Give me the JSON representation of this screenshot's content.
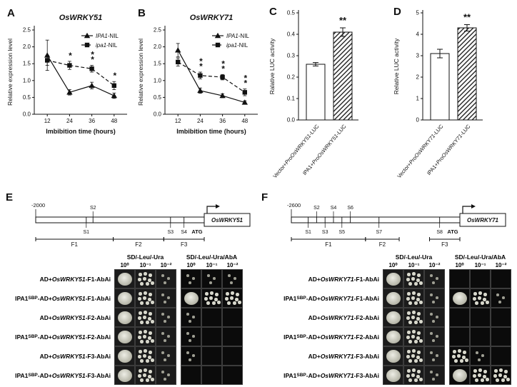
{
  "figure": {
    "panel_labels": {
      "A": "A",
      "B": "B",
      "C": "C",
      "D": "D",
      "E": "E",
      "F": "F"
    }
  },
  "chart_data": [
    {
      "id": "A",
      "type": "line",
      "title": "OsWRKY51",
      "xlabel": "Imbibition time (hours)",
      "ylabel": "Relative expression level",
      "x": [
        12,
        24,
        36,
        48
      ],
      "ylim": [
        0,
        2.5
      ],
      "yticks": [
        0,
        0.5,
        1,
        1.5,
        2,
        2.5
      ],
      "series": [
        {
          "name_it": "IPA1",
          "name_rest": "-NIL",
          "marker": "triangle",
          "dash": false,
          "values": [
            1.75,
            0.65,
            0.85,
            0.55
          ],
          "errors": [
            0.45,
            0.08,
            0.1,
            0.08
          ]
        },
        {
          "name_it": "ipa1",
          "name_rest": "-NIL",
          "marker": "square",
          "dash": true,
          "values": [
            1.6,
            1.45,
            1.35,
            0.85
          ],
          "errors": [
            0.15,
            0.12,
            0.1,
            0.12
          ]
        }
      ],
      "significance": [
        "",
        "*",
        "**",
        "*"
      ]
    },
    {
      "id": "B",
      "type": "line",
      "title": "OsWRKY71",
      "xlabel": "Imbibition time (hours)",
      "ylabel": "Relative expression level",
      "x": [
        12,
        24,
        36,
        48
      ],
      "ylim": [
        0,
        2.5
      ],
      "yticks": [
        0,
        0.5,
        1,
        1.5,
        2,
        2.5
      ],
      "series": [
        {
          "name_it": "IPA1",
          "name_rest": "-NIL",
          "marker": "triangle",
          "dash": false,
          "values": [
            1.9,
            0.7,
            0.55,
            0.35
          ],
          "errors": [
            0.2,
            0.08,
            0.06,
            0.05
          ]
        },
        {
          "name_it": "ipa1",
          "name_rest": "-NIL",
          "marker": "square",
          "dash": true,
          "values": [
            1.55,
            1.15,
            1.1,
            0.65
          ],
          "errors": [
            0.12,
            0.1,
            0.08,
            0.1
          ]
        }
      ],
      "significance": [
        "",
        "**",
        "**",
        "**"
      ]
    },
    {
      "id": "C",
      "type": "bar",
      "ylabel": "Ralative LUC activity",
      "ylim": [
        0,
        0.5
      ],
      "yticks": [
        0,
        0.1,
        0.2,
        0.3,
        0.4,
        0.5
      ],
      "bars": [
        {
          "label_parts": [
            {
              "t": "Vector+"
            },
            {
              "t": "ProOsWRKY51",
              "i": true
            },
            {
              "t": "-LUC"
            }
          ],
          "value": 0.26,
          "error": 0.008,
          "fill": "white"
        },
        {
          "label_parts": [
            {
              "t": "IPA1+"
            },
            {
              "t": "ProOsWRKY51",
              "i": true
            },
            {
              "t": "-LUC"
            }
          ],
          "value": 0.41,
          "error": 0.02,
          "fill": "hatch",
          "sig": "**"
        }
      ]
    },
    {
      "id": "D",
      "type": "bar",
      "ylabel": "Relative LUC activity",
      "ylim": [
        0,
        5
      ],
      "yticks": [
        0,
        1,
        2,
        3,
        4,
        5
      ],
      "bars": [
        {
          "label_parts": [
            {
              "t": "Vector+"
            },
            {
              "t": "ProOsWRKY71",
              "i": true
            },
            {
              "t": "-LUC"
            }
          ],
          "value": 3.1,
          "error": 0.2,
          "fill": "white"
        },
        {
          "label_parts": [
            {
              "t": "IPA1+"
            },
            {
              "t": "ProOsWRKY71",
              "i": true
            },
            {
              "t": "-LUC"
            }
          ],
          "value": 4.3,
          "error": 0.15,
          "fill": "hatch",
          "sig": "**"
        }
      ]
    }
  ],
  "diagrams": {
    "E": {
      "start_label": "-2000",
      "gene": "OsWRKY51",
      "atg": "ATG",
      "sites": [
        {
          "n": "S2",
          "p": 0.34,
          "above": true
        },
        {
          "n": "S1",
          "p": 0.3,
          "above": false
        },
        {
          "n": "S3",
          "p": 0.8,
          "above": false
        },
        {
          "n": "S4",
          "p": 0.88,
          "above": false
        }
      ],
      "fragments": [
        {
          "n": "F1",
          "a": 0,
          "b": 0.46
        },
        {
          "n": "F2",
          "a": 0.46,
          "b": 0.76
        },
        {
          "n": "F3",
          "a": 0.76,
          "b": 1
        }
      ]
    },
    "F": {
      "start_label": "-2600",
      "gene": "OsWRKY71",
      "atg": "ATG",
      "sites": [
        {
          "n": "S1",
          "p": 0.1,
          "above": false
        },
        {
          "n": "S2",
          "p": 0.15,
          "above": true
        },
        {
          "n": "S3",
          "p": 0.2,
          "above": false
        },
        {
          "n": "S4",
          "p": 0.25,
          "above": true
        },
        {
          "n": "S5",
          "p": 0.3,
          "above": false
        },
        {
          "n": "S6",
          "p": 0.35,
          "above": true
        },
        {
          "n": "S7",
          "p": 0.52,
          "above": false
        },
        {
          "n": "S8",
          "p": 0.88,
          "above": false
        }
      ],
      "fragments": [
        {
          "n": "F1",
          "a": 0,
          "b": 0.44
        },
        {
          "n": "F2",
          "a": 0.44,
          "b": 0.64
        },
        {
          "n": "F3",
          "a": 0.82,
          "b": 1
        }
      ]
    }
  },
  "assays": {
    "E": {
      "media": [
        "SD/-Leu/-Ura",
        "SD/-Leu/-Ura/AbA"
      ],
      "dilutions": [
        "10⁰",
        "10⁻¹",
        "10⁻²"
      ],
      "rows": [
        {
          "label_parts": [
            {
              "t": "AD+"
            },
            {
              "t": "OsWRKY51",
              "i": true
            },
            {
              "t": "-F1-AbAi"
            }
          ],
          "growth": [
            3,
            2,
            1,
            1,
            1,
            1
          ]
        },
        {
          "label_parts": [
            {
              "t": "IPA1"
            },
            {
              "t": "SBP",
              "sub": true
            },
            {
              "t": "-AD+"
            },
            {
              "t": "OsWRKY51",
              "i": true
            },
            {
              "t": "-F1-AbAi"
            }
          ],
          "growth": [
            3,
            2,
            1,
            3,
            2,
            2
          ]
        },
        {
          "label_parts": [
            {
              "t": "AD+"
            },
            {
              "t": "OsWRKY51",
              "i": true
            },
            {
              "t": "-F2-AbAi"
            }
          ],
          "growth": [
            3,
            2,
            1,
            1,
            0,
            0
          ]
        },
        {
          "label_parts": [
            {
              "t": "IPA1"
            },
            {
              "t": "SBP",
              "sub": true
            },
            {
              "t": "-AD+"
            },
            {
              "t": "OsWRKY51",
              "i": true
            },
            {
              "t": "-F2-AbAi"
            }
          ],
          "growth": [
            3,
            2,
            1,
            1,
            0,
            0
          ]
        },
        {
          "label_parts": [
            {
              "t": "AD+"
            },
            {
              "t": "OsWRKY51",
              "i": true
            },
            {
              "t": "-F3-AbAi"
            }
          ],
          "growth": [
            3,
            2,
            1,
            1,
            0,
            0
          ]
        },
        {
          "label_parts": [
            {
              "t": "IPA1"
            },
            {
              "t": "SBP",
              "sub": true
            },
            {
              "t": "-AD+"
            },
            {
              "t": "OsWRKY51",
              "i": true
            },
            {
              "t": "-F3-AbAi"
            }
          ],
          "growth": [
            3,
            2,
            1,
            0,
            0,
            0
          ]
        }
      ]
    },
    "F": {
      "media": [
        "SD/-Leu/-Ura",
        "SD/-Leu/-Ura/AbA"
      ],
      "dilutions": [
        "10⁰",
        "10⁻¹",
        "10⁻²"
      ],
      "rows": [
        {
          "label_parts": [
            {
              "t": "AD+"
            },
            {
              "t": "OsWRKY71",
              "i": true
            },
            {
              "t": "-F1-AbAi"
            }
          ],
          "growth": [
            3,
            2,
            1,
            0,
            0,
            0
          ]
        },
        {
          "label_parts": [
            {
              "t": "IPA1"
            },
            {
              "t": "SBP",
              "sub": true
            },
            {
              "t": "-AD+"
            },
            {
              "t": "OsWRKY71",
              "i": true
            },
            {
              "t": "-F1-AbAi"
            }
          ],
          "growth": [
            3,
            2,
            1,
            3,
            2,
            1
          ]
        },
        {
          "label_parts": [
            {
              "t": "AD+"
            },
            {
              "t": "OsWRKY71",
              "i": true
            },
            {
              "t": "-F2-AbAi"
            }
          ],
          "growth": [
            3,
            2,
            1,
            0,
            0,
            0
          ]
        },
        {
          "label_parts": [
            {
              "t": "IPA1"
            },
            {
              "t": "SBP",
              "sub": true
            },
            {
              "t": "-AD+"
            },
            {
              "t": "OsWRKY71",
              "i": true
            },
            {
              "t": "-F2-AbAi"
            }
          ],
          "growth": [
            3,
            2,
            1,
            0,
            0,
            0
          ]
        },
        {
          "label_parts": [
            {
              "t": "AD+"
            },
            {
              "t": "OsWRKY71",
              "i": true
            },
            {
              "t": "-F3-AbAi"
            }
          ],
          "growth": [
            3,
            2,
            1,
            2,
            1,
            0
          ]
        },
        {
          "label_parts": [
            {
              "t": "IPA1"
            },
            {
              "t": "SBP",
              "sub": true
            },
            {
              "t": "-AD+"
            },
            {
              "t": "OsWRKY71",
              "i": true
            },
            {
              "t": "-F3-AbAi"
            }
          ],
          "growth": [
            3,
            2,
            1,
            3,
            2,
            2
          ]
        }
      ]
    }
  }
}
